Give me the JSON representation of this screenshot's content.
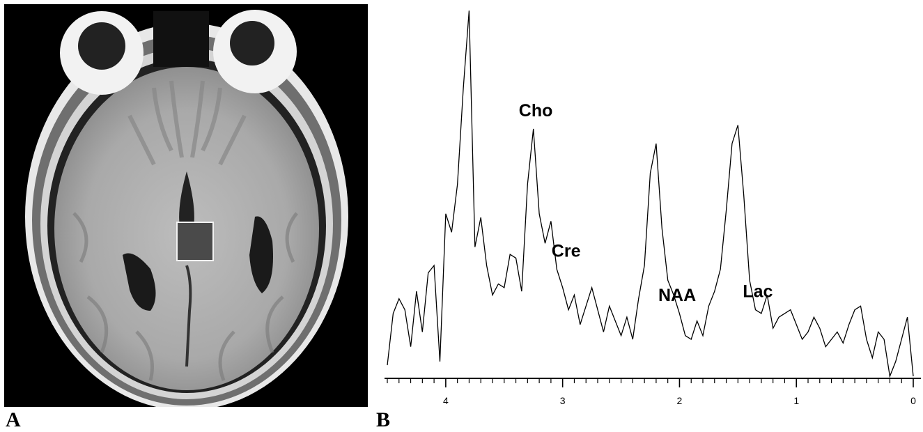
{
  "figure": {
    "panel_a": {
      "letter": "A"
    },
    "panel_b": {
      "letter": "B"
    }
  },
  "chart_data": {
    "type": "line",
    "xlim": [
      4.5,
      0
    ],
    "x_reversed": true,
    "ticks": {
      "major": [
        4,
        3,
        2,
        1,
        0
      ],
      "major_labels": [
        "4",
        "3",
        "2",
        "1",
        "0"
      ],
      "minor_step": 0.1
    },
    "grid": false,
    "legend": "none",
    "annotations": [
      {
        "label": "Cho",
        "x": 3.23
      },
      {
        "label": "Cre",
        "x": 3.03
      },
      {
        "label": "NAA",
        "x": 2.02
      },
      {
        "label": "Lac",
        "x": 1.33
      }
    ],
    "series": [
      {
        "x": [
          4.5,
          4.45,
          4.4,
          4.35,
          4.3,
          4.25,
          4.2,
          4.15,
          4.1,
          4.05,
          4.0,
          3.95,
          3.9,
          3.85,
          3.8,
          3.75,
          3.7,
          3.65,
          3.6,
          3.55,
          3.5,
          3.45,
          3.4,
          3.35,
          3.3,
          3.25,
          3.2,
          3.15,
          3.1,
          3.05,
          3.0,
          2.95,
          2.9,
          2.85,
          2.8,
          2.75,
          2.7,
          2.65,
          2.6,
          2.55,
          2.5,
          2.45,
          2.4,
          2.35,
          2.3,
          2.25,
          2.2,
          2.15,
          2.1,
          2.05,
          2.0,
          1.95,
          1.9,
          1.85,
          1.8,
          1.75,
          1.7,
          1.65,
          1.6,
          1.55,
          1.5,
          1.45,
          1.4,
          1.35,
          1.3,
          1.25,
          1.2,
          1.15,
          1.1,
          1.05,
          1.0,
          0.95,
          0.9,
          0.85,
          0.8,
          0.75,
          0.7,
          0.65,
          0.6,
          0.55,
          0.5,
          0.45,
          0.4,
          0.35,
          0.3,
          0.25,
          0.2,
          0.15,
          0.1,
          0.05,
          0.0
        ],
        "y": [
          0.03,
          0.17,
          0.21,
          0.18,
          0.08,
          0.23,
          0.12,
          0.28,
          0.3,
          0.04,
          0.44,
          0.39,
          0.52,
          0.78,
          0.99,
          0.35,
          0.43,
          0.3,
          0.22,
          0.25,
          0.24,
          0.33,
          0.32,
          0.23,
          0.52,
          0.67,
          0.44,
          0.36,
          0.42,
          0.29,
          0.24,
          0.18,
          0.22,
          0.14,
          0.19,
          0.24,
          0.18,
          0.12,
          0.19,
          0.15,
          0.11,
          0.16,
          0.1,
          0.21,
          0.3,
          0.55,
          0.63,
          0.4,
          0.26,
          0.22,
          0.17,
          0.11,
          0.1,
          0.15,
          0.11,
          0.19,
          0.23,
          0.29,
          0.45,
          0.63,
          0.68,
          0.49,
          0.26,
          0.18,
          0.17,
          0.22,
          0.13,
          0.16,
          0.17,
          0.18,
          0.14,
          0.1,
          0.12,
          0.16,
          0.13,
          0.08,
          0.1,
          0.12,
          0.09,
          0.14,
          0.18,
          0.19,
          0.1,
          0.05,
          0.12,
          0.1,
          0.0,
          0.04,
          0.1,
          0.16,
          0.0
        ]
      }
    ]
  }
}
